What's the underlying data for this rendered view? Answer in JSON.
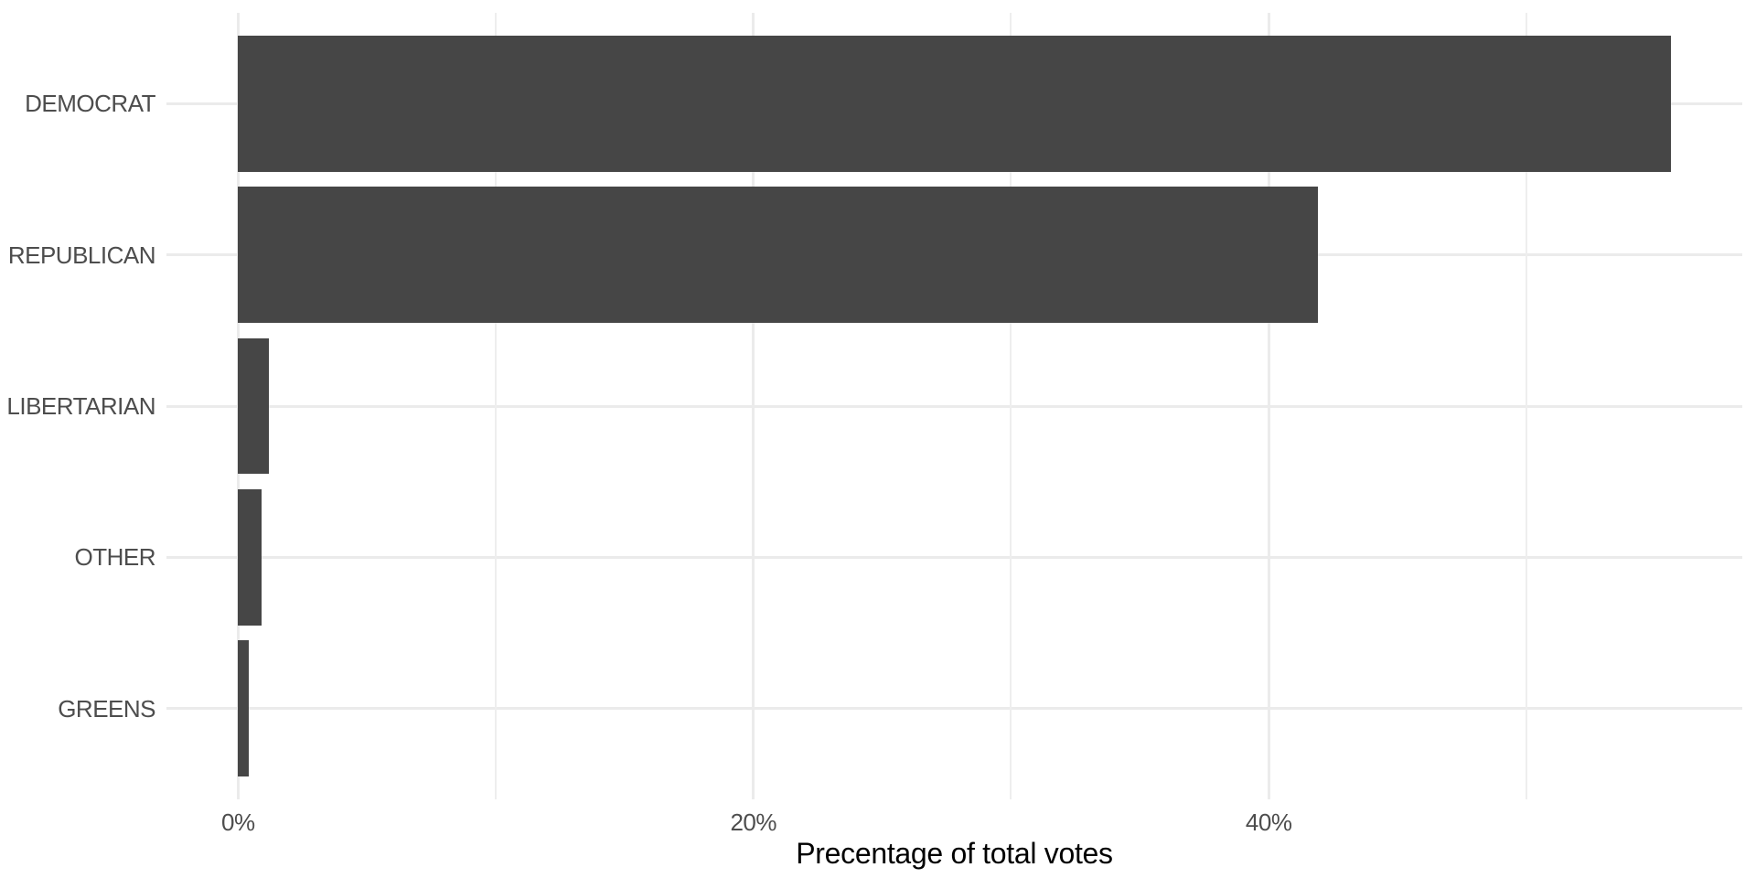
{
  "chart_data": {
    "type": "bar",
    "orientation": "horizontal",
    "title": "",
    "xlabel": "Precentage of total votes",
    "ylabel": "",
    "categories": [
      "DEMOCRAT",
      "REPUBLICAN",
      "LIBERTARIAN",
      "OTHER",
      "GREENS"
    ],
    "values": [
      55.6,
      41.9,
      1.2,
      0.9,
      0.4
    ],
    "value_unit": "%",
    "x_ticks": [
      {
        "value": 0,
        "label": "0%"
      },
      {
        "value": 20,
        "label": "20%"
      },
      {
        "value": 40,
        "label": "40%"
      }
    ],
    "x_minor_ticks": [
      10,
      30,
      50
    ],
    "xlim": [
      -2.78,
      58.38
    ],
    "grid": true,
    "legend": false,
    "colors": {
      "bar": "#464646",
      "grid_major": "#ebebeb",
      "grid_minor": "#eeeeee",
      "axis_text": "#4d4d4d",
      "axis_title": "#000000",
      "background": "#ffffff"
    }
  }
}
